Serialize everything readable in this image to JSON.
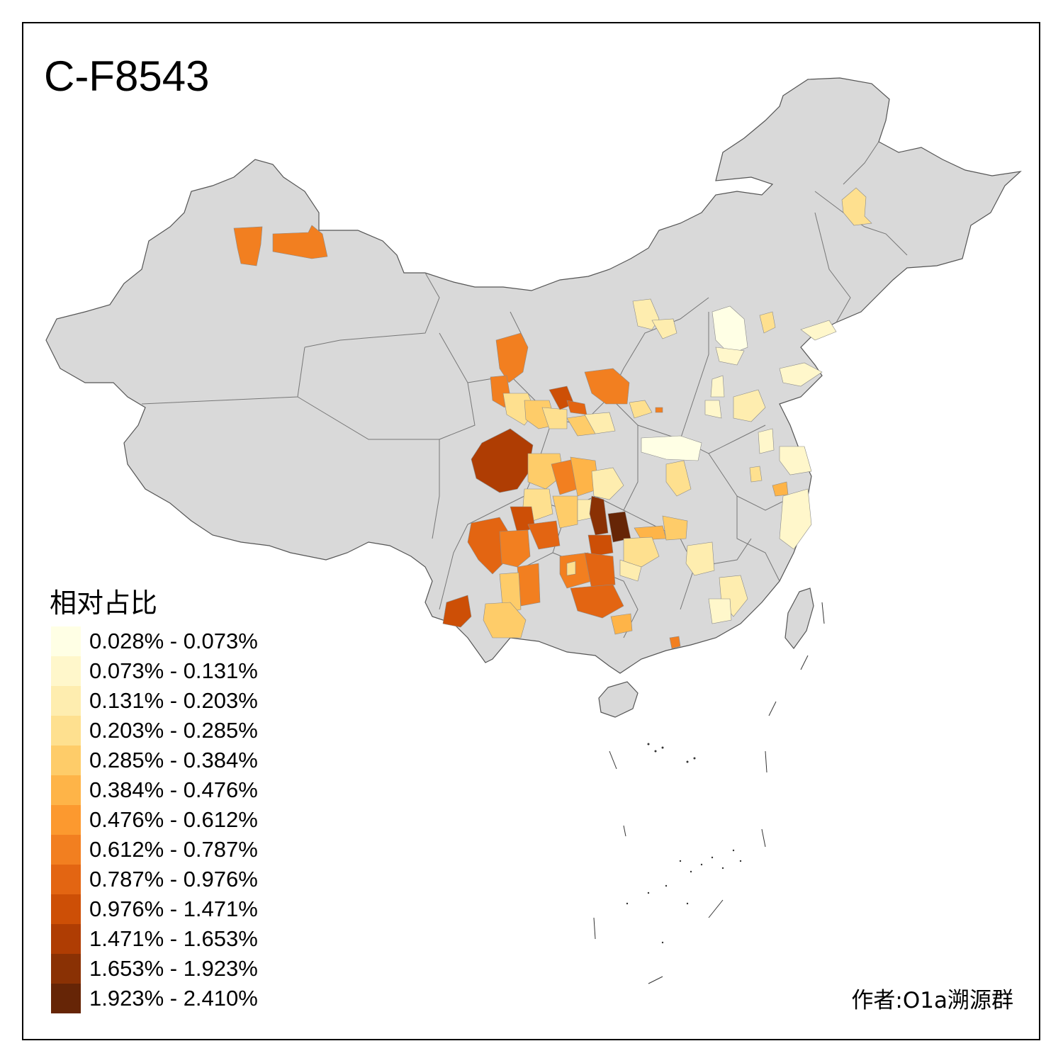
{
  "title": "C-F8543",
  "legend": {
    "title": "相对占比",
    "items": [
      {
        "label": "0.028% - 0.073%",
        "color": "#FFFFE5"
      },
      {
        "label": "0.073% - 0.131%",
        "color": "#FFF7CB"
      },
      {
        "label": "0.131% - 0.203%",
        "color": "#FEEDAF"
      },
      {
        "label": "0.203% - 0.285%",
        "color": "#FEE08F"
      },
      {
        "label": "0.285% - 0.384%",
        "color": "#FECC69"
      },
      {
        "label": "0.384% - 0.476%",
        "color": "#FEB448"
      },
      {
        "label": "0.476% - 0.612%",
        "color": "#FC992F"
      },
      {
        "label": "0.612% - 0.787%",
        "color": "#F27F20"
      },
      {
        "label": "0.787% - 0.976%",
        "color": "#E36512"
      },
      {
        "label": "0.976% - 1.471%",
        "color": "#CD4F06"
      },
      {
        "label": "1.471% - 1.653%",
        "color": "#AF3D03"
      },
      {
        "label": "1.653% - 1.923%",
        "color": "#8A3104"
      },
      {
        "label": "1.923% - 2.410%",
        "color": "#662506"
      }
    ]
  },
  "credit": "作者:O1a溯源群",
  "base_color": "#D9D9D9"
}
